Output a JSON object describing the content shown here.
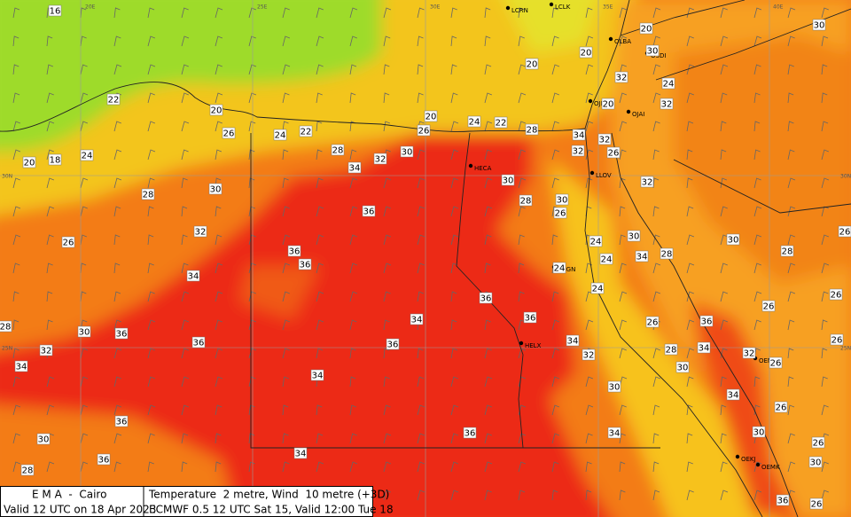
{
  "header": {
    "org": "E M A  -  Cairo",
    "valid": "Valid 12 UTC on 18 Apr 2023",
    "field": "Temperature  2 metre, Wind  10 metre (+3D)",
    "run": "ECMWF 0.5 12 UTC Sat 15, Valid 12:00 Tue 18"
  },
  "grid_labels": [
    "20E",
    "25E",
    "30E",
    "35E",
    "40E",
    "30N",
    "30N",
    "25N",
    "25N"
  ],
  "stations": [
    "LCRN",
    "LCLK",
    "OLBA",
    "OSDI",
    "OJBG",
    "OJAI",
    "HECA",
    "LLOV",
    "HEGN",
    "HELX",
    "OEMA",
    "OEKJ",
    "OEMK"
  ],
  "temperature_labels": [
    16,
    22,
    20,
    26,
    24,
    22,
    20,
    18,
    24,
    28,
    32,
    30,
    34,
    20,
    24,
    22,
    28,
    26,
    20,
    20,
    20,
    30,
    32,
    24,
    30,
    20,
    32,
    34,
    32,
    32,
    26,
    28,
    30,
    30,
    28,
    30,
    26,
    32,
    36,
    32,
    26,
    36,
    36,
    24,
    30,
    24,
    34,
    28,
    30,
    28,
    26,
    34,
    24,
    24,
    36,
    26,
    26,
    36,
    34,
    26,
    36,
    28,
    30,
    36,
    36,
    36,
    34,
    28,
    34,
    32,
    26,
    32,
    34,
    32,
    30,
    26,
    34,
    30,
    34,
    26,
    36,
    36,
    34,
    30,
    30,
    26,
    36,
    34,
    30,
    28,
    36,
    26
  ]
}
